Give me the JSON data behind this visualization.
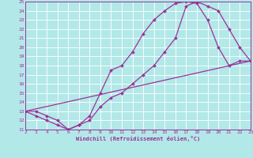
{
  "xlabel": "Windchill (Refroidissement éolien,°C)",
  "background_color": "#b3e8e8",
  "grid_color": "#ffffff",
  "line_color": "#993399",
  "xlim": [
    2,
    23
  ],
  "ylim": [
    11,
    25
  ],
  "xticks": [
    2,
    3,
    4,
    5,
    6,
    7,
    8,
    9,
    10,
    11,
    12,
    13,
    14,
    15,
    16,
    17,
    18,
    19,
    20,
    21,
    22,
    23
  ],
  "yticks": [
    11,
    12,
    13,
    14,
    15,
    16,
    17,
    18,
    19,
    20,
    21,
    22,
    23,
    24,
    25
  ],
  "line1_x": [
    2,
    3,
    4,
    5,
    6,
    7,
    8,
    9,
    10,
    11,
    12,
    13,
    14,
    15,
    16,
    17,
    18,
    19,
    20,
    21,
    22,
    23
  ],
  "line1_y": [
    13,
    13,
    12.5,
    12,
    11,
    11.5,
    12.5,
    15,
    17.5,
    18,
    19.5,
    21.5,
    23,
    24,
    24.8,
    25,
    24.8,
    23,
    20,
    18,
    18.5,
    18.5
  ],
  "line2_x": [
    2,
    3,
    4,
    5,
    6,
    7,
    8,
    9,
    10,
    11,
    12,
    13,
    14,
    15,
    16,
    17,
    18,
    19,
    20,
    21,
    22,
    23
  ],
  "line2_y": [
    13,
    12.5,
    12,
    11.5,
    11,
    11.5,
    12,
    13.5,
    14.5,
    15,
    16,
    17,
    18,
    19.5,
    21,
    24.5,
    25,
    24.5,
    24,
    22,
    20,
    18.5
  ],
  "line3_x": [
    2,
    23
  ],
  "line3_y": [
    13,
    18.5
  ]
}
